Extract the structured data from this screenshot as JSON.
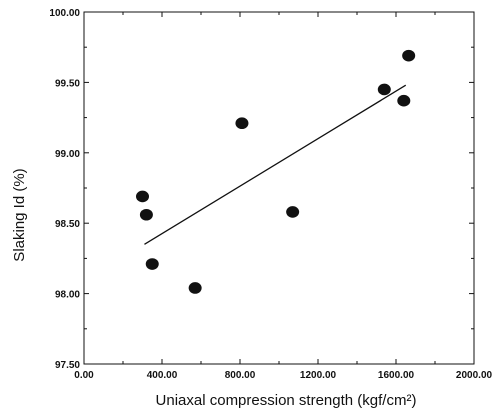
{
  "chart_data": {
    "type": "scatter",
    "title": "",
    "xlabel": "Uniaxal compression strength (kgf/cm²)",
    "ylabel": "Slaking Id (%)",
    "xlim": [
      0,
      2000
    ],
    "ylim": [
      97.5,
      100.0
    ],
    "x_ticks": [
      {
        "value": 0,
        "label": "0.00"
      },
      {
        "value": 400,
        "label": "400.00"
      },
      {
        "value": 800,
        "label": "800.00"
      },
      {
        "value": 1200,
        "label": "1200.00"
      },
      {
        "value": 1600,
        "label": "1600.00"
      },
      {
        "value": 2000,
        "label": "2000.00"
      }
    ],
    "y_ticks": [
      {
        "value": 97.5,
        "label": "97.50"
      },
      {
        "value": 98.0,
        "label": "98.00"
      },
      {
        "value": 98.5,
        "label": "98.50"
      },
      {
        "value": 99.0,
        "label": "99.00"
      },
      {
        "value": 99.5,
        "label": "99.50"
      },
      {
        "value": 100.0,
        "label": "100.00"
      }
    ],
    "grid": false,
    "marker_color": "#111111",
    "line_color": "#111111",
    "points": [
      {
        "x": 300,
        "y": 98.69
      },
      {
        "x": 320,
        "y": 98.56
      },
      {
        "x": 350,
        "y": 98.21
      },
      {
        "x": 570,
        "y": 98.04
      },
      {
        "x": 810,
        "y": 99.21
      },
      {
        "x": 1070,
        "y": 98.58
      },
      {
        "x": 1540,
        "y": 99.45
      },
      {
        "x": 1640,
        "y": 99.37
      },
      {
        "x": 1665,
        "y": 99.69
      }
    ],
    "trendline": {
      "x": [
        310,
        1650
      ],
      "y": [
        98.35,
        99.48
      ]
    }
  }
}
